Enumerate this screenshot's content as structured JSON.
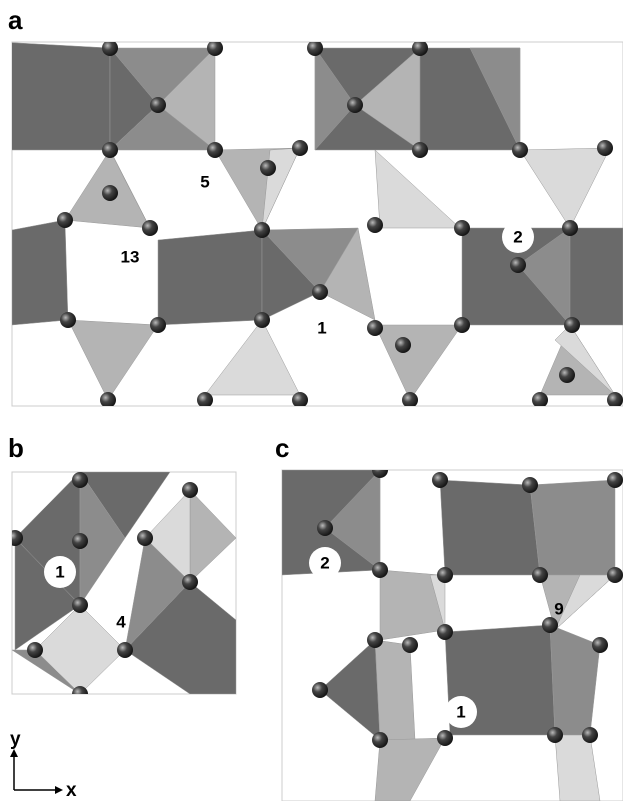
{
  "panels": [
    {
      "label": "a",
      "annotations": [
        "5",
        "13",
        "2",
        "1"
      ]
    },
    {
      "label": "b",
      "annotations": [
        "1",
        "4"
      ]
    },
    {
      "label": "c",
      "annotations": [
        "2",
        "9",
        "1"
      ]
    }
  ],
  "axes": {
    "y": "y",
    "x": "x"
  }
}
